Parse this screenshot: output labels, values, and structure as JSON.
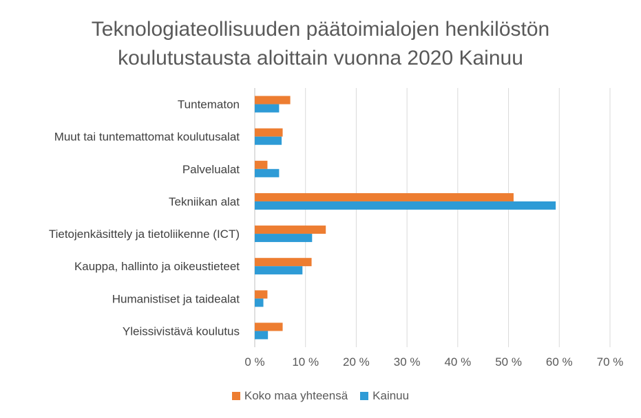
{
  "chart_data": {
    "type": "bar",
    "orientation": "horizontal",
    "title_lines": [
      "Teknologiateollisuuden päätoimialojen henkilöstön",
      "koulutustausta aloittain vuonna 2020 Kainuu"
    ],
    "categories": [
      "Tuntematon",
      "Muut tai tuntemattomat koulutusalat",
      "Palvelualat",
      "Tekniikan alat",
      "Tietojenkäsittely ja tietoliikenne (ICT)",
      "Kauppa, hallinto ja oikeustieteet",
      "Humanistiset ja taidealat",
      "Yleissivistävä koulutus"
    ],
    "series": [
      {
        "name": "Koko maa yhteensä",
        "color": "#ED7D31",
        "values": [
          7.0,
          5.5,
          2.5,
          51.0,
          14.0,
          11.2,
          2.5,
          5.5
        ]
      },
      {
        "name": "Kainuu",
        "color": "#2E9BD6",
        "values": [
          4.8,
          5.3,
          4.8,
          59.3,
          11.3,
          9.4,
          1.7,
          2.6
        ]
      }
    ],
    "x_ticks": [
      "0 %",
      "10 %",
      "20 %",
      "30 %",
      "40 %",
      "50 %",
      "60 %",
      "70 %"
    ],
    "xlim": [
      0,
      70
    ],
    "grid": true,
    "legend_position": "bottom"
  }
}
